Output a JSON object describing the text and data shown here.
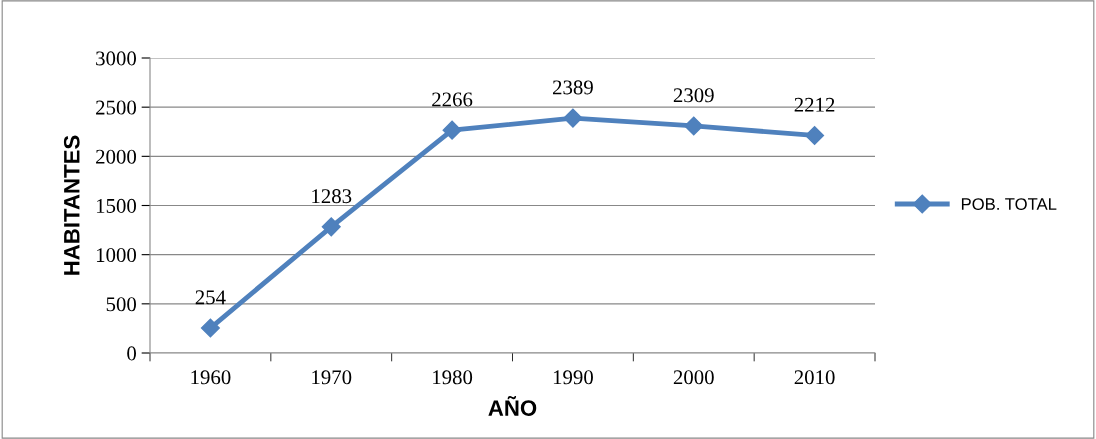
{
  "chart_data": {
    "type": "line",
    "xlabel": "AÑO",
    "ylabel": "HABITANTES",
    "categories": [
      "1960",
      "1970",
      "1980",
      "1990",
      "2000",
      "2010"
    ],
    "series": [
      {
        "name": "POB. TOTAL",
        "color": "#4f81bd",
        "values": [
          254,
          1283,
          2266,
          2389,
          2309,
          2212
        ]
      }
    ],
    "ylim": [
      0,
      3000
    ],
    "yticks": [
      0,
      500,
      1000,
      1500,
      2000,
      2500,
      3000
    ],
    "grid": "y",
    "legend": "right",
    "marker": "diamond",
    "line_style": "solid",
    "data_labels": true
  }
}
